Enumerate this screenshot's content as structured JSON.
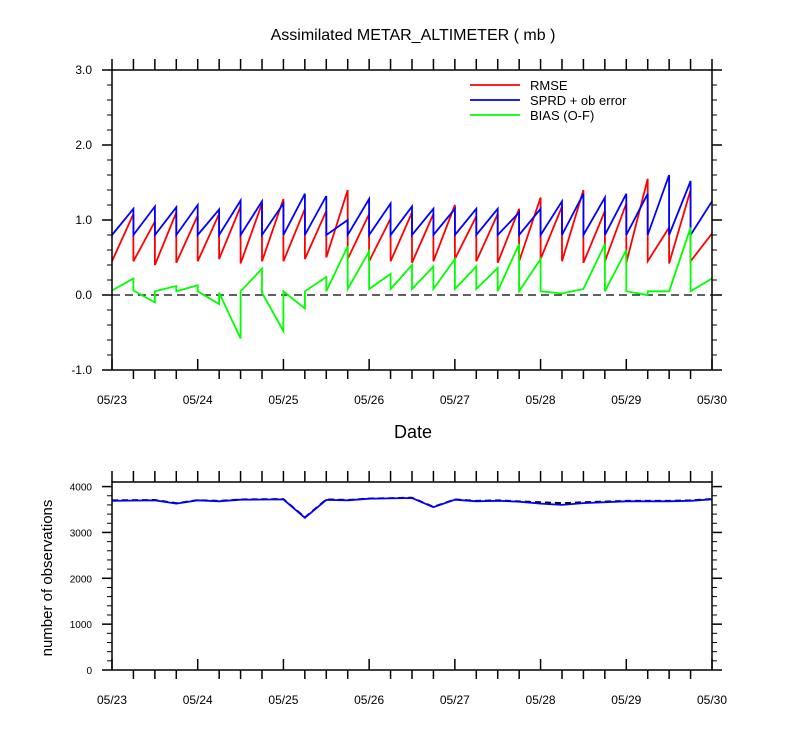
{
  "colors": {
    "rmse": "#ff0000",
    "sprd": "#0000ff",
    "bias": "#00ff00",
    "axis": "#000000"
  },
  "chart_data": [
    {
      "type": "line",
      "title": "Assimilated METAR_ALTIMETER ( mb )",
      "xlabel": "Date",
      "ylabel": "",
      "x_tick_labels": [
        "05/23",
        "05/24",
        "05/25",
        "05/26",
        "05/27",
        "05/28",
        "05/29",
        "05/30"
      ],
      "x_tick_values": [
        0,
        1,
        2,
        3,
        4,
        5,
        6,
        7
      ],
      "xlim": [
        0,
        7
      ],
      "ylim": [
        -1.0,
        3.0
      ],
      "y_tick_labels": [
        "-1.0",
        "0.0",
        "1.0",
        "2.0",
        "3.0"
      ],
      "y_tick_values": [
        -1,
        0,
        1,
        2,
        3
      ],
      "zero_line": "dashed",
      "legend": {
        "placement": "top-right",
        "entries": [
          "RMSE",
          "SPRD + ob error",
          "BIAS (O-F)"
        ]
      },
      "series": [
        {
          "name": "RMSE",
          "color": "#ff0000",
          "points": [
            [
              0,
              0.45
            ],
            [
              0.25,
              1.08
            ],
            [
              0.25,
              0.45
            ],
            [
              0.5,
              0.98
            ],
            [
              0.5,
              0.4
            ],
            [
              0.75,
              1.1
            ],
            [
              0.75,
              0.43
            ],
            [
              1,
              1.06
            ],
            [
              1,
              0.45
            ],
            [
              1.25,
              1.08
            ],
            [
              1.25,
              0.48
            ],
            [
              1.5,
              1.18
            ],
            [
              1.5,
              0.42
            ],
            [
              1.75,
              1.22
            ],
            [
              1.75,
              0.45
            ],
            [
              2,
              1.28
            ],
            [
              2,
              0.45
            ],
            [
              2.25,
              1.15
            ],
            [
              2.25,
              0.48
            ],
            [
              2.5,
              1.12
            ],
            [
              2.5,
              0.5
            ],
            [
              2.75,
              1.4
            ],
            [
              2.75,
              0.48
            ],
            [
              3,
              1.08
            ],
            [
              3,
              0.45
            ],
            [
              3.25,
              1.02
            ],
            [
              3.25,
              0.45
            ],
            [
              3.5,
              1.1
            ],
            [
              3.5,
              0.43
            ],
            [
              3.75,
              1.08
            ],
            [
              3.75,
              0.45
            ],
            [
              4,
              1.2
            ],
            [
              4,
              0.48
            ],
            [
              4.25,
              1.05
            ],
            [
              4.25,
              0.45
            ],
            [
              4.5,
              1.08
            ],
            [
              4.5,
              0.43
            ],
            [
              4.75,
              1.15
            ],
            [
              4.75,
              0.45
            ],
            [
              5,
              1.3
            ],
            [
              5,
              0.48
            ],
            [
              5.25,
              1.18
            ],
            [
              5.25,
              0.45
            ],
            [
              5.5,
              1.4
            ],
            [
              5.5,
              0.43
            ],
            [
              5.75,
              1.12
            ],
            [
              5.75,
              0.45
            ],
            [
              6,
              1.22
            ],
            [
              6,
              0.43
            ],
            [
              6.25,
              1.55
            ],
            [
              6.25,
              0.45
            ],
            [
              6.5,
              0.9
            ],
            [
              6.5,
              0.42
            ],
            [
              6.75,
              1.4
            ],
            [
              6.75,
              0.45
            ],
            [
              7,
              0.82
            ]
          ]
        },
        {
          "name": "SPRD + ob error",
          "color": "#0000ff",
          "points": [
            [
              0,
              0.8
            ],
            [
              0.25,
              1.15
            ],
            [
              0.25,
              0.8
            ],
            [
              0.5,
              1.18
            ],
            [
              0.5,
              0.8
            ],
            [
              0.75,
              1.17
            ],
            [
              0.75,
              0.8
            ],
            [
              1,
              1.2
            ],
            [
              1,
              0.8
            ],
            [
              1.25,
              1.14
            ],
            [
              1.25,
              0.8
            ],
            [
              1.5,
              1.26
            ],
            [
              1.5,
              0.8
            ],
            [
              1.75,
              1.25
            ],
            [
              1.75,
              0.8
            ],
            [
              2,
              1.22
            ],
            [
              2,
              0.8
            ],
            [
              2.25,
              1.35
            ],
            [
              2.25,
              0.8
            ],
            [
              2.5,
              1.32
            ],
            [
              2.5,
              0.8
            ],
            [
              2.75,
              1.0
            ],
            [
              2.75,
              0.8
            ],
            [
              3,
              1.28
            ],
            [
              3,
              0.8
            ],
            [
              3.25,
              1.22
            ],
            [
              3.25,
              0.8
            ],
            [
              3.5,
              1.18
            ],
            [
              3.5,
              0.8
            ],
            [
              3.75,
              1.15
            ],
            [
              3.75,
              0.8
            ],
            [
              4,
              1.15
            ],
            [
              4,
              0.8
            ],
            [
              4.25,
              1.15
            ],
            [
              4.25,
              0.8
            ],
            [
              4.5,
              1.15
            ],
            [
              4.5,
              0.8
            ],
            [
              4.75,
              1.1
            ],
            [
              4.75,
              0.8
            ],
            [
              5,
              1.15
            ],
            [
              5,
              0.8
            ],
            [
              5.25,
              1.25
            ],
            [
              5.25,
              0.8
            ],
            [
              5.5,
              1.35
            ],
            [
              5.5,
              0.8
            ],
            [
              5.75,
              1.3
            ],
            [
              5.75,
              0.8
            ],
            [
              6,
              1.35
            ],
            [
              6,
              0.8
            ],
            [
              6.25,
              1.35
            ],
            [
              6.25,
              0.8
            ],
            [
              6.5,
              1.6
            ],
            [
              6.5,
              0.8
            ],
            [
              6.75,
              1.52
            ],
            [
              6.75,
              0.8
            ],
            [
              7,
              1.25
            ]
          ]
        },
        {
          "name": "BIAS (O-F)",
          "color": "#00ff00",
          "points": [
            [
              0,
              0.06
            ],
            [
              0.25,
              0.22
            ],
            [
              0.25,
              0.06
            ],
            [
              0.5,
              -0.1
            ],
            [
              0.5,
              0.05
            ],
            [
              0.75,
              0.12
            ],
            [
              0.75,
              0.05
            ],
            [
              1,
              0.13
            ],
            [
              1,
              0.05
            ],
            [
              1.25,
              -0.12
            ],
            [
              1.25,
              0.03
            ],
            [
              1.5,
              -0.58
            ],
            [
              1.5,
              0.05
            ],
            [
              1.75,
              0.35
            ],
            [
              1.75,
              0.03
            ],
            [
              2,
              -0.48
            ],
            [
              2,
              0.05
            ],
            [
              2.25,
              -0.18
            ],
            [
              2.25,
              0.05
            ],
            [
              2.5,
              0.24
            ],
            [
              2.5,
              0.05
            ],
            [
              2.75,
              0.65
            ],
            [
              2.75,
              0.08
            ],
            [
              3,
              0.58
            ],
            [
              3,
              0.08
            ],
            [
              3.25,
              0.28
            ],
            [
              3.25,
              0.08
            ],
            [
              3.5,
              0.4
            ],
            [
              3.5,
              0.08
            ],
            [
              3.75,
              0.38
            ],
            [
              3.75,
              0.08
            ],
            [
              4,
              0.48
            ],
            [
              4,
              0.08
            ],
            [
              4.25,
              0.38
            ],
            [
              4.25,
              0.08
            ],
            [
              4.5,
              0.36
            ],
            [
              4.5,
              0.05
            ],
            [
              4.75,
              0.68
            ],
            [
              4.75,
              0.05
            ],
            [
              5,
              0.48
            ],
            [
              5,
              0.05
            ],
            [
              5.25,
              0.02
            ],
            [
              5.5,
              0.08
            ],
            [
              5.75,
              0.68
            ],
            [
              5.75,
              0.05
            ],
            [
              6,
              0.6
            ],
            [
              6,
              0.05
            ],
            [
              6.25,
              0.0
            ],
            [
              6.25,
              0.05
            ],
            [
              6.5,
              0.05
            ],
            [
              6.75,
              0.9
            ],
            [
              6.75,
              0.05
            ],
            [
              7,
              0.22
            ]
          ]
        }
      ]
    },
    {
      "type": "line",
      "title": "",
      "xlabel": "",
      "ylabel": "number of observations",
      "x_tick_labels": [
        "05/23",
        "05/24",
        "05/25",
        "05/26",
        "05/27",
        "05/28",
        "05/29",
        "05/30"
      ],
      "x_tick_values": [
        0,
        1,
        2,
        3,
        4,
        5,
        6,
        7
      ],
      "xlim": [
        0,
        7
      ],
      "ylim": [
        0,
        4100
      ],
      "y_tick_labels": [
        "0",
        "1000",
        "2000",
        "3000",
        "4000"
      ],
      "y_tick_values": [
        0,
        1000,
        2000,
        3000,
        4000
      ],
      "series": [
        {
          "color": "#000000",
          "dash": "dashed",
          "points": [
            [
              0,
              3700
            ],
            [
              0.5,
              3710
            ],
            [
              0.75,
              3640
            ],
            [
              1,
              3705
            ],
            [
              1.25,
              3690
            ],
            [
              1.5,
              3720
            ],
            [
              2,
              3730
            ],
            [
              2.25,
              3330
            ],
            [
              2.5,
              3720
            ],
            [
              2.75,
              3710
            ],
            [
              3,
              3740
            ],
            [
              3.5,
              3760
            ],
            [
              3.75,
              3560
            ],
            [
              4,
              3720
            ],
            [
              4.25,
              3690
            ],
            [
              4.5,
              3700
            ],
            [
              4.75,
              3680
            ],
            [
              5,
              3660
            ],
            [
              5.25,
              3640
            ],
            [
              5.5,
              3660
            ],
            [
              6,
              3690
            ],
            [
              6.5,
              3690
            ],
            [
              6.75,
              3700
            ],
            [
              7,
              3730
            ]
          ]
        },
        {
          "color": "#0000ff",
          "points": [
            [
              0,
              3690
            ],
            [
              0.5,
              3700
            ],
            [
              0.75,
              3630
            ],
            [
              1,
              3700
            ],
            [
              1.25,
              3680
            ],
            [
              1.5,
              3715
            ],
            [
              2,
              3720
            ],
            [
              2.25,
              3320
            ],
            [
              2.5,
              3710
            ],
            [
              2.75,
              3700
            ],
            [
              3,
              3735
            ],
            [
              3.5,
              3750
            ],
            [
              3.75,
              3550
            ],
            [
              4,
              3715
            ],
            [
              4.25,
              3680
            ],
            [
              4.5,
              3690
            ],
            [
              4.75,
              3670
            ],
            [
              5,
              3630
            ],
            [
              5.25,
              3600
            ],
            [
              5.5,
              3640
            ],
            [
              6,
              3680
            ],
            [
              6.5,
              3680
            ],
            [
              6.75,
              3690
            ],
            [
              7,
              3720
            ]
          ]
        }
      ]
    }
  ]
}
